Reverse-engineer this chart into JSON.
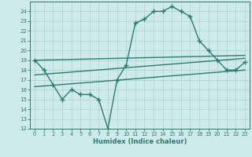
{
  "main_x": [
    0,
    1,
    2,
    3,
    4,
    5,
    6,
    7,
    8,
    9,
    10,
    11,
    12,
    13,
    14,
    15,
    16,
    17,
    18,
    19,
    20,
    21,
    22,
    23
  ],
  "main_y": [
    19,
    18,
    16.5,
    15,
    16,
    15.5,
    15.5,
    15,
    12,
    17,
    18.5,
    22.8,
    23.2,
    24.0,
    24.0,
    24.5,
    24.0,
    23.5,
    21.0,
    20.0,
    19.0,
    18.0,
    18.0,
    18.8
  ],
  "line1_x": [
    0,
    23
  ],
  "line1_y": [
    19.0,
    19.5
  ],
  "line2_x": [
    0,
    23
  ],
  "line2_y": [
    17.5,
    19.2
  ],
  "line3_x": [
    0,
    23
  ],
  "line3_y": [
    16.3,
    18.0
  ],
  "color": "#2d7a6e",
  "bg_color": "#ceeaea",
  "grid_color": "#aad0d0",
  "xlabel": "Humidex (Indice chaleur)",
  "xlim": [
    -0.5,
    23.5
  ],
  "ylim": [
    12,
    25
  ],
  "xticks": [
    0,
    1,
    2,
    3,
    4,
    5,
    6,
    7,
    8,
    9,
    10,
    11,
    12,
    13,
    14,
    15,
    16,
    17,
    18,
    19,
    20,
    21,
    22,
    23
  ],
  "yticks": [
    12,
    13,
    14,
    15,
    16,
    17,
    18,
    19,
    20,
    21,
    22,
    23,
    24
  ],
  "marker": "+",
  "markersize": 4.0,
  "linewidth": 1.0
}
